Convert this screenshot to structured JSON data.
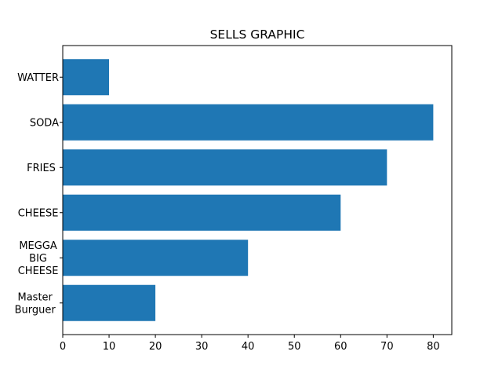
{
  "chart_data": {
    "type": "bar",
    "orientation": "horizontal",
    "title": "SELLS GRAPHIC",
    "xlabel": "",
    "ylabel": "",
    "categories": [
      "Master\nBurguer",
      "MEGGA\nBIG\nCHEESE",
      "CHEESE",
      "FRIES",
      "SODA",
      "WATTER"
    ],
    "values": [
      20,
      40,
      60,
      70,
      80,
      10
    ],
    "xlim": [
      0,
      84
    ],
    "xticks": [
      0,
      10,
      20,
      30,
      40,
      50,
      60,
      70,
      80
    ],
    "grid": false,
    "legend": "none",
    "bar_color": "#1f77b4"
  }
}
